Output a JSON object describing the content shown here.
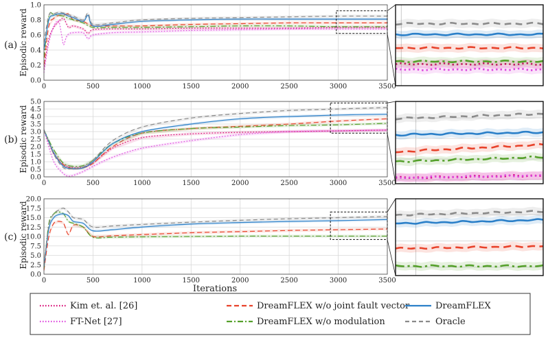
{
  "figure": {
    "xlabel": "Iterations",
    "ylabel": "Episodic reward",
    "x_ticks": [
      0,
      500,
      1000,
      1500,
      2000,
      2500,
      3000,
      3500
    ]
  },
  "legend": [
    {
      "name": "Kim et. al. [26]",
      "color": "#d6006e",
      "dash": "1.5,2.5",
      "width": 1.8
    },
    {
      "name": "FT-Net [27]",
      "color": "#dd44dd",
      "dash": "1.5,2.5",
      "width": 1.8
    },
    {
      "name": "DreamFLEX w/o joint fault vector",
      "color": "#e8422a",
      "dash": "7,4",
      "width": 1.8
    },
    {
      "name": "DreamFLEX w/o modulation",
      "color": "#55a02b",
      "dash": "8,3,2,3",
      "width": 1.8
    },
    {
      "name": "DreamFLEX",
      "color": "#2a7fc8",
      "dash": "",
      "width": 1.8
    },
    {
      "name": "Oracle",
      "color": "#8a8a8a",
      "dash": "6,4",
      "width": 1.8
    }
  ],
  "chart_data": [
    {
      "type": "line",
      "label": "(a)",
      "ylabel": "Episodic reward",
      "xlabel": "",
      "xlim": [
        0,
        3500
      ],
      "ylim": [
        0.0,
        1.0
      ],
      "yticks": [
        "0.0",
        "0.2",
        "0.4",
        "0.6",
        "0.8",
        "1.0"
      ],
      "xticks": [
        "0",
        "500",
        "1000",
        "1500",
        "2000",
        "2500",
        "3000",
        "3500"
      ],
      "zoom_x": [
        2980,
        3500
      ],
      "zoom_y": [
        0.62,
        0.92
      ],
      "series": [
        {
          "name": "Kim et. al. [26]",
          "x": [
            0,
            50,
            100,
            150,
            200,
            250,
            300,
            400,
            450,
            500,
            700,
            1000,
            1500,
            2000,
            2500,
            3000,
            3500
          ],
          "y": [
            0.15,
            0.55,
            0.7,
            0.78,
            0.82,
            0.7,
            0.72,
            0.68,
            0.62,
            0.67,
            0.68,
            0.68,
            0.69,
            0.69,
            0.69,
            0.7,
            0.7
          ]
        },
        {
          "name": "FT-Net [27]",
          "x": [
            0,
            50,
            100,
            150,
            180,
            200,
            230,
            260,
            300,
            400,
            450,
            500,
            700,
            1000,
            1500,
            2000,
            2500,
            3000,
            3500
          ],
          "y": [
            0.1,
            0.5,
            0.72,
            0.78,
            0.6,
            0.47,
            0.58,
            0.62,
            0.63,
            0.63,
            0.55,
            0.6,
            0.63,
            0.64,
            0.66,
            0.67,
            0.68,
            0.68,
            0.68
          ]
        },
        {
          "name": "DreamFLEX w/o joint fault vector",
          "x": [
            0,
            50,
            100,
            150,
            200,
            250,
            300,
            400,
            500,
            700,
            1000,
            1500,
            2000,
            2500,
            3000,
            3500
          ],
          "y": [
            0.2,
            0.72,
            0.82,
            0.86,
            0.86,
            0.88,
            0.8,
            0.78,
            0.72,
            0.72,
            0.72,
            0.74,
            0.75,
            0.76,
            0.76,
            0.76
          ]
        },
        {
          "name": "DreamFLEX w/o modulation",
          "x": [
            0,
            50,
            100,
            150,
            200,
            250,
            300,
            400,
            500,
            700,
            1000,
            1500,
            2000,
            2500,
            3000,
            3500
          ],
          "y": [
            0.3,
            0.85,
            0.87,
            0.86,
            0.85,
            0.82,
            0.8,
            0.76,
            0.7,
            0.7,
            0.7,
            0.71,
            0.72,
            0.72,
            0.71,
            0.71
          ]
        },
        {
          "name": "DreamFLEX",
          "x": [
            0,
            50,
            100,
            150,
            200,
            250,
            300,
            400,
            450,
            500,
            700,
            1000,
            1500,
            2000,
            2500,
            3000,
            3500
          ],
          "y": [
            0.4,
            0.8,
            0.86,
            0.88,
            0.88,
            0.85,
            0.83,
            0.78,
            0.86,
            0.72,
            0.74,
            0.78,
            0.8,
            0.81,
            0.81,
            0.81,
            0.81
          ]
        },
        {
          "name": "Oracle",
          "x": [
            0,
            50,
            100,
            150,
            200,
            250,
            300,
            400,
            450,
            500,
            700,
            1000,
            1500,
            2000,
            2500,
            3000,
            3500
          ],
          "y": [
            0.5,
            0.86,
            0.88,
            0.9,
            0.89,
            0.87,
            0.85,
            0.8,
            0.89,
            0.74,
            0.76,
            0.8,
            0.82,
            0.83,
            0.84,
            0.85,
            0.85
          ]
        }
      ]
    },
    {
      "type": "line",
      "label": "(b)",
      "ylabel": "Episodic reward",
      "xlabel": "",
      "xlim": [
        0,
        3500
      ],
      "ylim": [
        0.0,
        5.0
      ],
      "yticks": [
        "0.0",
        "0.5",
        "1.0",
        "1.5",
        "2.0",
        "2.5",
        "3.0",
        "3.5",
        "4.0",
        "4.5",
        "5.0"
      ],
      "xticks": [
        "0",
        "500",
        "1000",
        "1500",
        "2000",
        "2500",
        "3000",
        "3500"
      ],
      "zoom_x": [
        2920,
        3500
      ],
      "zoom_y": [
        2.9,
        4.9
      ],
      "series": [
        {
          "name": "Kim et. al. [26]",
          "x": [
            0,
            100,
            200,
            300,
            400,
            500,
            700,
            1000,
            1500,
            2000,
            2500,
            3000,
            3500
          ],
          "y": [
            3.1,
            1.5,
            0.8,
            0.6,
            0.65,
            0.9,
            1.9,
            2.6,
            2.85,
            2.95,
            3.0,
            3.05,
            3.1
          ]
        },
        {
          "name": "FT-Net [27]",
          "x": [
            0,
            100,
            200,
            250,
            300,
            400,
            500,
            700,
            1000,
            1500,
            2000,
            2500,
            3000,
            3500
          ],
          "y": [
            3.1,
            1.0,
            0.2,
            0.05,
            0.1,
            0.35,
            0.7,
            1.3,
            1.9,
            2.4,
            2.8,
            3.0,
            3.05,
            3.1
          ]
        },
        {
          "name": "DreamFLEX w/o joint fault vector",
          "x": [
            0,
            100,
            200,
            300,
            400,
            500,
            700,
            1000,
            1500,
            2000,
            2500,
            3000,
            3500
          ],
          "y": [
            3.1,
            1.6,
            0.8,
            0.55,
            0.6,
            0.9,
            2.0,
            2.9,
            3.2,
            3.35,
            3.5,
            3.7,
            3.85
          ]
        },
        {
          "name": "DreamFLEX w/o modulation",
          "x": [
            0,
            100,
            200,
            300,
            400,
            500,
            700,
            1000,
            1500,
            2000,
            2500,
            3000,
            3500
          ],
          "y": [
            3.1,
            1.8,
            0.9,
            0.7,
            0.75,
            1.1,
            2.2,
            2.9,
            3.2,
            3.3,
            3.4,
            3.45,
            3.55
          ]
        },
        {
          "name": "DreamFLEX",
          "x": [
            0,
            100,
            200,
            300,
            400,
            500,
            700,
            1000,
            1500,
            2000,
            2500,
            3000,
            3500
          ],
          "y": [
            3.1,
            1.6,
            0.7,
            0.55,
            0.6,
            1.0,
            2.2,
            3.0,
            3.5,
            3.85,
            4.0,
            4.1,
            4.15
          ]
        },
        {
          "name": "Oracle",
          "x": [
            0,
            100,
            200,
            300,
            400,
            500,
            700,
            1000,
            1500,
            2000,
            2500,
            3000,
            3500
          ],
          "y": [
            3.1,
            1.5,
            0.6,
            0.55,
            0.65,
            1.1,
            2.4,
            3.3,
            3.9,
            4.2,
            4.4,
            4.5,
            4.6
          ]
        }
      ]
    },
    {
      "type": "line",
      "label": "(c)",
      "ylabel": "Episodic reward",
      "xlabel": "Iterations",
      "xlim": [
        0,
        3500
      ],
      "ylim": [
        0.0,
        20.0
      ],
      "yticks": [
        "0.0",
        "2.5",
        "5.0",
        "7.5",
        "10.0",
        "12.5",
        "15.0",
        "17.5",
        "20.0"
      ],
      "xticks": [
        "0",
        "500",
        "1000",
        "1500",
        "2000",
        "2500",
        "3000",
        "3500"
      ],
      "zoom_x": [
        2920,
        3500
      ],
      "zoom_y": [
        9.2,
        16.5
      ],
      "series": [
        {
          "name": "DreamFLEX w/o joint fault vector",
          "x": [
            0,
            50,
            100,
            150,
            200,
            250,
            300,
            400,
            500,
            700,
            1000,
            1500,
            2000,
            2500,
            3000,
            3500
          ],
          "y": [
            1.0,
            10.0,
            13.5,
            14.0,
            13.5,
            10.5,
            13.0,
            12.5,
            10.0,
            10.2,
            10.5,
            11.0,
            11.3,
            11.6,
            11.8,
            12.0
          ]
        },
        {
          "name": "DreamFLEX w/o modulation",
          "x": [
            0,
            50,
            100,
            150,
            200,
            250,
            300,
            400,
            500,
            700,
            1000,
            1500,
            2000,
            2500,
            3000,
            3500
          ],
          "y": [
            1.5,
            13.5,
            16.0,
            16.5,
            16.0,
            14.0,
            13.5,
            12.5,
            9.8,
            9.8,
            9.9,
            10.0,
            10.1,
            10.1,
            10.1,
            10.1
          ]
        },
        {
          "name": "DreamFLEX",
          "x": [
            0,
            50,
            100,
            150,
            200,
            250,
            300,
            400,
            500,
            700,
            1000,
            1500,
            2000,
            2500,
            3000,
            3500
          ],
          "y": [
            2.0,
            12.0,
            15.0,
            15.8,
            16.0,
            15.5,
            14.0,
            13.5,
            11.5,
            11.8,
            12.5,
            13.3,
            13.7,
            14.0,
            14.2,
            14.5
          ]
        },
        {
          "name": "Oracle",
          "x": [
            0,
            50,
            100,
            150,
            200,
            250,
            300,
            400,
            500,
            700,
            1000,
            1500,
            2000,
            2500,
            3000,
            3500
          ],
          "y": [
            2.5,
            13.0,
            16.0,
            17.0,
            17.5,
            16.5,
            15.0,
            14.5,
            12.5,
            12.8,
            13.2,
            13.8,
            14.3,
            14.7,
            15.0,
            15.3
          ]
        }
      ]
    }
  ]
}
